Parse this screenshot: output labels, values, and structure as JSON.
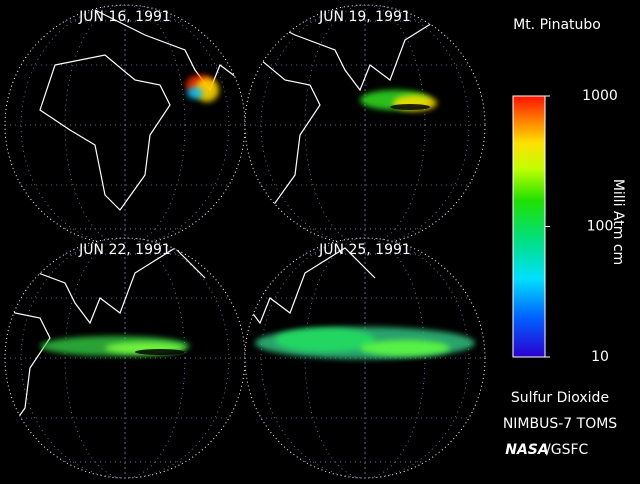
{
  "title": "Mt. Pinatubo",
  "panels": [
    {
      "date": "JUN 16, 1991"
    },
    {
      "date": "JUN 19, 1991"
    },
    {
      "date": "JUN 22, 1991"
    },
    {
      "date": "JUN 25, 1991"
    }
  ],
  "colorbar": {
    "label": "Milli Atm cm",
    "scale": "log",
    "range": [
      10,
      1000
    ],
    "ticks": [
      10,
      100,
      1000
    ]
  },
  "footer": {
    "product": "Sulfur Dioxide",
    "instrument": "NIMBUS-7 TOMS",
    "agency": "NASA",
    "center": "/GSFC"
  }
}
